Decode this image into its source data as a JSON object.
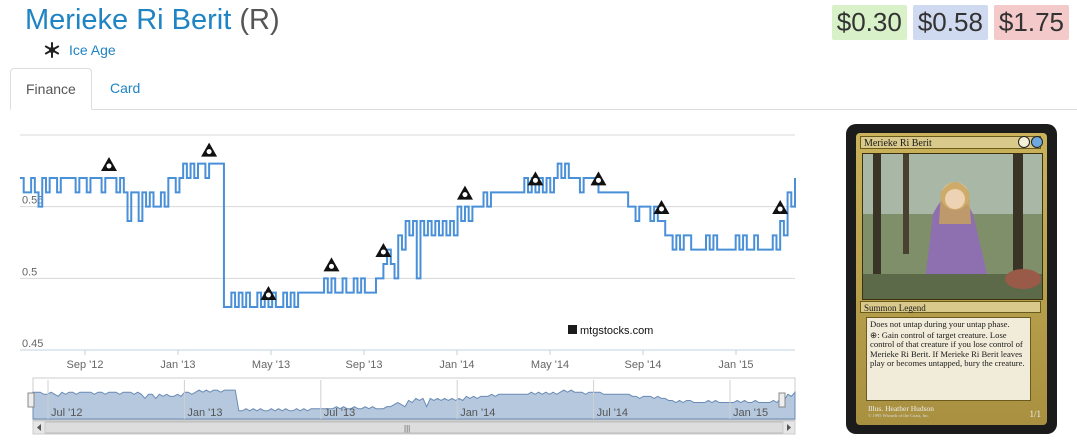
{
  "card": {
    "name": "Merieke Ri Berit",
    "rarity": "(R)",
    "set": "Ice Age",
    "set_icon": "ice-age-snowflake-icon"
  },
  "prices": [
    {
      "label": "$0.30",
      "color": "#d9f1c8"
    },
    {
      "label": "$0.58",
      "color": "#cfd9ef"
    },
    {
      "label": "$1.75",
      "color": "#f3c9c9"
    }
  ],
  "tabs": [
    {
      "label": "Finance",
      "active": true
    },
    {
      "label": "Card",
      "active": false
    }
  ],
  "watermark": "mtgstocks.com",
  "chart_data": {
    "type": "line",
    "y_ticks": [
      "0.55",
      "0.5",
      "0.45"
    ],
    "ylim": [
      0.45,
      0.6
    ],
    "x_ticks": [
      "Sep '12",
      "Jan '13",
      "May '13",
      "Sep '13",
      "Jan '14",
      "May '14",
      "Sep '14",
      "Jan '15"
    ],
    "line_color": "#4a90d9",
    "grid": true,
    "series": [
      {
        "values": [
          0.57,
          0.56,
          0.56,
          0.57,
          0.56,
          0.55,
          0.57,
          0.56,
          0.57,
          0.57,
          0.56,
          0.57,
          0.57,
          0.57,
          0.57,
          0.56,
          0.57,
          0.57,
          0.56,
          0.57,
          0.57,
          0.57,
          0.56,
          0.57,
          0.57,
          0.57,
          0.56,
          0.57,
          0.56,
          0.54,
          0.56,
          0.56,
          0.54,
          0.56,
          0.55,
          0.56,
          0.55,
          0.55,
          0.56,
          0.55,
          0.57,
          0.57,
          0.56,
          0.57,
          0.58,
          0.57,
          0.58,
          0.57,
          0.58,
          0.58,
          0.57,
          0.58,
          0.58,
          0.58,
          0.58,
          0.48,
          0.48,
          0.49,
          0.48,
          0.49,
          0.48,
          0.49,
          0.48,
          0.48,
          0.49,
          0.48,
          0.49,
          0.48,
          0.49,
          0.48,
          0.48,
          0.49,
          0.48,
          0.49,
          0.48,
          0.49,
          0.49,
          0.49,
          0.49,
          0.49,
          0.49,
          0.49,
          0.5,
          0.49,
          0.5,
          0.49,
          0.49,
          0.5,
          0.49,
          0.49,
          0.5,
          0.49,
          0.5,
          0.49,
          0.49,
          0.49,
          0.5,
          0.5,
          0.51,
          0.52,
          0.51,
          0.5,
          0.53,
          0.52,
          0.54,
          0.53,
          0.54,
          0.5,
          0.54,
          0.53,
          0.54,
          0.53,
          0.54,
          0.53,
          0.54,
          0.53,
          0.54,
          0.53,
          0.55,
          0.54,
          0.55,
          0.54,
          0.55,
          0.55,
          0.55,
          0.56,
          0.55,
          0.56,
          0.56,
          0.56,
          0.56,
          0.56,
          0.56,
          0.56,
          0.56,
          0.56,
          0.57,
          0.56,
          0.57,
          0.56,
          0.57,
          0.56,
          0.57,
          0.56,
          0.57,
          0.58,
          0.57,
          0.58,
          0.57,
          0.57,
          0.57,
          0.56,
          0.57,
          0.57,
          0.57,
          0.57,
          0.56,
          0.56,
          0.56,
          0.56,
          0.56,
          0.56,
          0.56,
          0.56,
          0.55,
          0.55,
          0.54,
          0.55,
          0.55,
          0.55,
          0.54,
          0.55,
          0.54,
          0.54,
          0.53,
          0.53,
          0.52,
          0.53,
          0.52,
          0.53,
          0.53,
          0.52,
          0.52,
          0.52,
          0.52,
          0.53,
          0.52,
          0.53,
          0.52,
          0.52,
          0.52,
          0.52,
          0.52,
          0.53,
          0.52,
          0.53,
          0.52,
          0.52,
          0.53,
          0.52,
          0.52,
          0.52,
          0.52,
          0.53,
          0.52,
          0.54,
          0.53,
          0.56,
          0.55,
          0.57
        ]
      }
    ],
    "markers": [
      {
        "name": "set-symbol-icon-1",
        "index": 24
      },
      {
        "name": "set-symbol-icon-2",
        "index": 51
      },
      {
        "name": "set-symbol-icon-3",
        "index": 67
      },
      {
        "name": "set-symbol-icon-m14",
        "index": 84
      },
      {
        "name": "set-symbol-icon-5",
        "index": 98
      },
      {
        "name": "set-symbol-icon-6",
        "index": 120
      },
      {
        "name": "set-symbol-icon-7",
        "index": 139
      },
      {
        "name": "set-symbol-icon-m15",
        "index": 156
      },
      {
        "name": "set-symbol-icon-9",
        "index": 173
      },
      {
        "name": "set-symbol-icon-10",
        "index": 205
      }
    ],
    "navigator_ticks": [
      "Jul '12",
      "Jan '13",
      "Jul '13",
      "Jan '14",
      "Jul '14",
      "Jan '15"
    ]
  },
  "card_image": {
    "name": "Merieke Ri Berit",
    "type_line": "Summon Legend",
    "text": [
      "Does not untap during your untap phase.",
      "⊕: Gain control of target creature. Lose control of that creature if you lose control of Merieke Ri Berit. If Merieke Ri Berit leaves play or becomes untapped, bury the creature."
    ],
    "illus": "Illus. Heather Hudson",
    "copyright": "© 1995 Wizards of the Coast, Inc.",
    "count": "1/1"
  }
}
